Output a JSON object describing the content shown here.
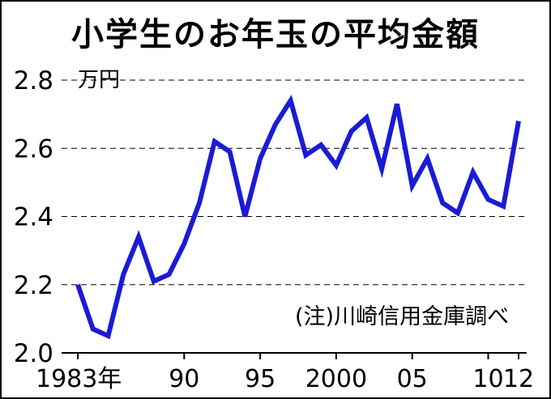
{
  "chart_data": {
    "type": "line",
    "title": "小学生のお年玉の平均金額",
    "ylabel": "万円",
    "note": "(注)川崎信用金庫調べ",
    "x_tick_labels": [
      {
        "x": 1983,
        "label": "1983年"
      },
      {
        "x": 1990,
        "label": "90"
      },
      {
        "x": 1995,
        "label": "95"
      },
      {
        "x": 2000,
        "label": "2000"
      },
      {
        "x": 2005,
        "label": "05"
      },
      {
        "x": 2010,
        "label": "10"
      },
      {
        "x": 2012,
        "label": "12"
      }
    ],
    "y_ticks": [
      "2.0",
      "2.2",
      "2.4",
      "2.6",
      "2.8"
    ],
    "ylim": [
      2.0,
      2.8
    ],
    "xlim": [
      1983,
      2012
    ],
    "grid": "horizontal dashed",
    "color": "#1b1bd6",
    "x": [
      1983,
      1984,
      1985,
      1986,
      1987,
      1988,
      1989,
      1990,
      1991,
      1992,
      1993,
      1994,
      1995,
      1996,
      1997,
      1998,
      1999,
      2000,
      2001,
      2002,
      2003,
      2004,
      2005,
      2006,
      2007,
      2008,
      2009,
      2010,
      2011,
      2012
    ],
    "values": [
      2.2,
      2.07,
      2.05,
      2.23,
      2.34,
      2.21,
      2.23,
      2.32,
      2.44,
      2.62,
      2.59,
      2.4,
      2.57,
      2.67,
      2.74,
      2.58,
      2.61,
      2.55,
      2.65,
      2.69,
      2.54,
      2.73,
      2.49,
      2.57,
      2.44,
      2.41,
      2.53,
      2.45,
      2.43,
      2.68
    ]
  }
}
